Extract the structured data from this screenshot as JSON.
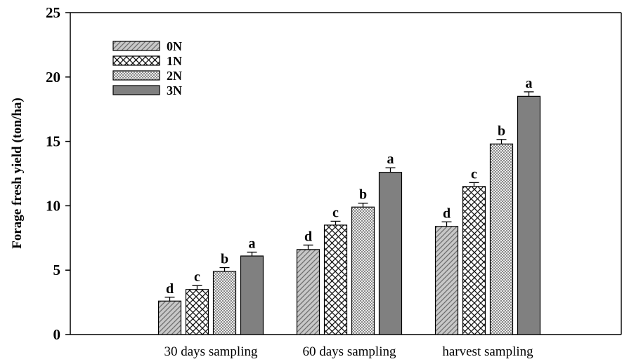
{
  "chart_data": {
    "type": "bar",
    "title": "",
    "xlabel": "",
    "ylabel": "Forage fresh yield (ton/ha)",
    "ylim": [
      0,
      25
    ],
    "yticks": [
      0,
      5,
      10,
      15,
      20,
      25
    ],
    "grid": false,
    "legend_position": "top-left",
    "categories": [
      "30 days sampling",
      "60 days sampling",
      "harvest sampling"
    ],
    "series": [
      {
        "name": "0N",
        "pattern": "diagonal-hatch",
        "color": "#c8c8c8",
        "values": [
          2.6,
          6.6,
          8.4
        ],
        "errors": [
          0.3,
          0.35,
          0.35
        ],
        "letters": [
          "d",
          "d",
          "d"
        ]
      },
      {
        "name": "1N",
        "pattern": "crosshatch",
        "color": "#ffffff",
        "values": [
          3.5,
          8.5,
          11.5
        ],
        "errors": [
          0.3,
          0.3,
          0.3
        ],
        "letters": [
          "c",
          "c",
          "c"
        ]
      },
      {
        "name": "2N",
        "pattern": "fine-checker",
        "color": "#d9d9d9",
        "values": [
          4.9,
          9.9,
          14.8
        ],
        "errors": [
          0.3,
          0.3,
          0.35
        ],
        "letters": [
          "b",
          "b",
          "b"
        ]
      },
      {
        "name": "3N",
        "pattern": "solid",
        "color": "#808080",
        "values": [
          6.1,
          12.6,
          18.5
        ],
        "errors": [
          0.3,
          0.35,
          0.35
        ],
        "letters": [
          "a",
          "a",
          "a"
        ]
      }
    ]
  }
}
